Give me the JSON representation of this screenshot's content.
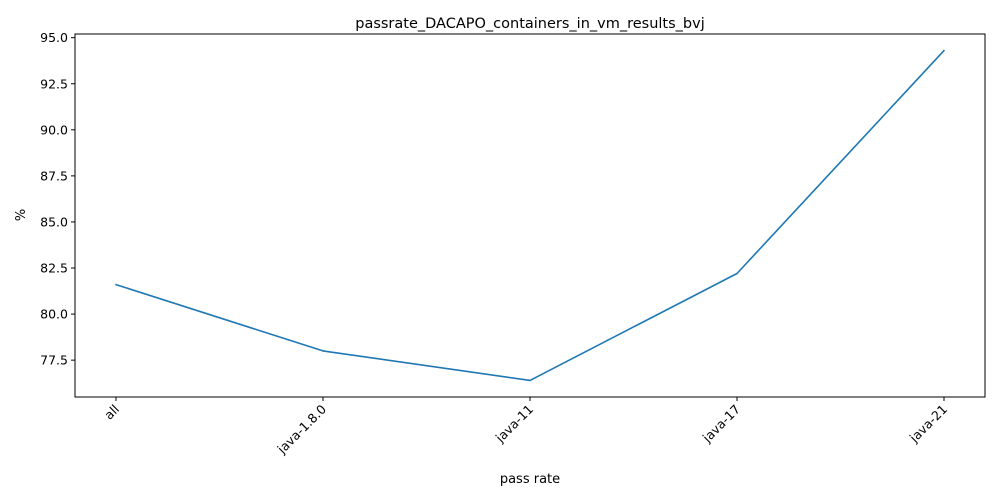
{
  "chart_data": {
    "type": "line",
    "title": "passrate_DACAPO_containers_in_vm_results_bvj",
    "xlabel": "pass rate",
    "ylabel": "%",
    "categories": [
      "all",
      "java-1.8.0",
      "java-11",
      "java-17",
      "java-21"
    ],
    "series": [
      {
        "values": [
          81.6,
          78.0,
          76.4,
          82.2,
          94.3
        ],
        "color": "#1f77b4"
      }
    ],
    "ylim": [
      75.5,
      95.2
    ],
    "yticks": [
      "77.5",
      "80.0",
      "82.5",
      "85.0",
      "87.5",
      "90.0",
      "92.5",
      "95.0"
    ],
    "grid": false,
    "legend": "none"
  }
}
